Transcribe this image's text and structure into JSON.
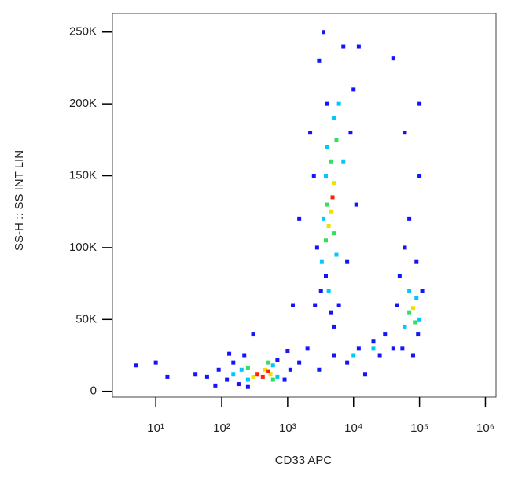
{
  "chart_data": {
    "type": "scatter",
    "x_label": "CD33 APC",
    "y_label": "SS-H :: SS INT LIN",
    "log_x": true,
    "xlim": [
      2.2,
      1450000
    ],
    "ylim": [
      -4000,
      263000
    ],
    "xticks": [
      {
        "value": 10,
        "label": "10¹"
      },
      {
        "value": 100,
        "label": "10²"
      },
      {
        "value": 1000,
        "label": "10³"
      },
      {
        "value": 10000,
        "label": "10⁴"
      },
      {
        "value": 100000,
        "label": "10⁵"
      },
      {
        "value": 1000000,
        "label": "10⁶"
      }
    ],
    "yticks": [
      0,
      {
        "value": 50000,
        "label": "50K"
      },
      {
        "value": 100000,
        "label": "100K"
      },
      {
        "value": 150000,
        "label": "150K"
      },
      {
        "value": 200000,
        "label": "200K"
      },
      {
        "value": 250000,
        "label": "250K"
      }
    ],
    "series": [
      {
        "color": "#1414ff",
        "x": [
          60,
          90,
          120,
          150,
          180,
          220,
          250,
          700,
          900,
          1100,
          80,
          40,
          1000,
          130,
          2500,
          3000,
          3500,
          4000,
          2800,
          3200,
          4500,
          6000,
          8000,
          9000,
          10000,
          7000,
          11000,
          2200,
          5000,
          3800,
          12000,
          2600,
          1500,
          2000,
          3000,
          5000,
          8000,
          12000,
          20000,
          30000,
          15000,
          25000,
          40000,
          50000,
          60000,
          70000,
          90000,
          100000,
          110000,
          55000,
          80000,
          95000,
          40000,
          60000,
          100000,
          45000,
          5,
          10,
          15,
          300,
          1200,
          1500
        ],
        "values": [
          10000,
          15000,
          8000,
          20000,
          5000,
          25000,
          3000,
          22000,
          8000,
          15000,
          4000,
          12000,
          28000,
          26000,
          150000,
          230000,
          250000,
          200000,
          100000,
          70000,
          55000,
          60000,
          90000,
          180000,
          210000,
          240000,
          130000,
          180000,
          45000,
          80000,
          240000,
          60000,
          20000,
          30000,
          15000,
          25000,
          20000,
          30000,
          35000,
          40000,
          12000,
          25000,
          30000,
          80000,
          100000,
          120000,
          90000,
          150000,
          70000,
          30000,
          25000,
          40000,
          232000,
          180000,
          200000,
          60000,
          18000,
          20000,
          10000,
          40000,
          60000,
          120000
        ]
      },
      {
        "color": "#00c8ff",
        "x": [
          200,
          250,
          600,
          700,
          150,
          3500,
          4000,
          5000,
          6000,
          3300,
          4200,
          7000,
          3800,
          5500,
          60000,
          90000,
          100000,
          70000,
          10000,
          20000
        ],
        "values": [
          15000,
          8000,
          18000,
          10000,
          12000,
          120000,
          170000,
          190000,
          200000,
          90000,
          70000,
          160000,
          150000,
          95000,
          45000,
          65000,
          50000,
          70000,
          25000,
          30000
        ]
      },
      {
        "color": "#30e060",
        "x": [
          250,
          500,
          600,
          4000,
          4500,
          5500,
          3800,
          5000,
          70000,
          85000
        ],
        "values": [
          16000,
          20000,
          8000,
          130000,
          160000,
          175000,
          105000,
          110000,
          55000,
          48000
        ]
      },
      {
        "color": "#f0e000",
        "x": [
          300,
          450,
          550,
          4500,
          5000,
          4200,
          80000
        ],
        "values": [
          10000,
          15000,
          12000,
          125000,
          145000,
          115000,
          58000
        ]
      },
      {
        "color": "#ff2000",
        "x": [
          350,
          420,
          500,
          4800
        ],
        "values": [
          12000,
          10000,
          14000,
          135000
        ]
      }
    ]
  }
}
